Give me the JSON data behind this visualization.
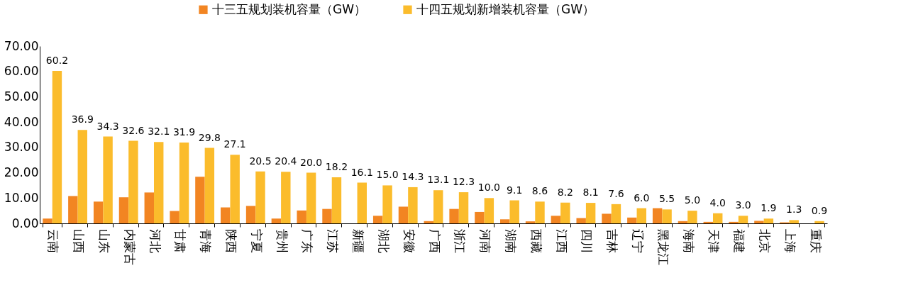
{
  "chart_data": {
    "type": "bar",
    "categories": [
      "云南",
      "山西",
      "山东",
      "内蒙古",
      "河北",
      "甘肃",
      "青海",
      "陕西",
      "宁夏",
      "贵州",
      "广东",
      "江苏",
      "新疆",
      "湖北",
      "安徽",
      "广西",
      "浙江",
      "河南",
      "湖南",
      "西藏",
      "江西",
      "四川",
      "吉林",
      "辽宁",
      "黑龙江",
      "海南",
      "天津",
      "福建",
      "北京",
      "上海",
      "重庆"
    ],
    "series": [
      {
        "name": "十三五规划装机容量（GW）",
        "color": "#f28522",
        "values": [
          1.9,
          10.8,
          8.6,
          10.3,
          12.2,
          4.9,
          18.4,
          6.3,
          6.9,
          1.9,
          5.1,
          5.7,
          0,
          3.0,
          6.6,
          0.9,
          5.7,
          4.5,
          1.6,
          0.8,
          3.0,
          2.1,
          3.8,
          2.3,
          6.0,
          0.9,
          0.6,
          0.6,
          1.0,
          0.4,
          0
        ]
      },
      {
        "name": "十四五规划新增装机容量（GW）",
        "color": "#fbbc2c",
        "values": [
          60.2,
          36.9,
          34.3,
          32.6,
          32.1,
          31.9,
          29.8,
          27.1,
          20.5,
          20.4,
          20.0,
          18.2,
          16.1,
          15.0,
          14.3,
          13.1,
          12.3,
          10.0,
          9.1,
          8.6,
          8.2,
          8.1,
          7.6,
          6.0,
          5.5,
          5.0,
          4.0,
          3.0,
          1.9,
          1.3,
          0.9
        ],
        "value_labels": [
          "60.2",
          "36.9",
          "34.3",
          "32.6",
          "32.1",
          "31.9",
          "29.8",
          "27.1",
          "20.5",
          "20.4",
          "20.0",
          "18.2",
          "16.1",
          "15.0",
          "14.3",
          "13.1",
          "12.3",
          "10.0",
          "9.1",
          "8.6",
          "8.2",
          "8.1",
          "7.6",
          "6.0",
          "5.5",
          "5.0",
          "4.0",
          "3.0",
          "1.9",
          "1.3",
          "0.9"
        ]
      }
    ],
    "ylim": [
      0,
      70
    ],
    "yticks": [
      {
        "value": 0,
        "label": "0.00"
      },
      {
        "value": 10,
        "label": "10.00"
      },
      {
        "value": 20,
        "label": "20.00"
      },
      {
        "value": 30,
        "label": "30.00"
      },
      {
        "value": 40,
        "label": "40.00"
      },
      {
        "value": 50,
        "label": "50.00"
      },
      {
        "value": 60,
        "label": "60.00"
      },
      {
        "value": 70,
        "label": "70.00"
      }
    ],
    "grid": false,
    "legend": "top"
  }
}
